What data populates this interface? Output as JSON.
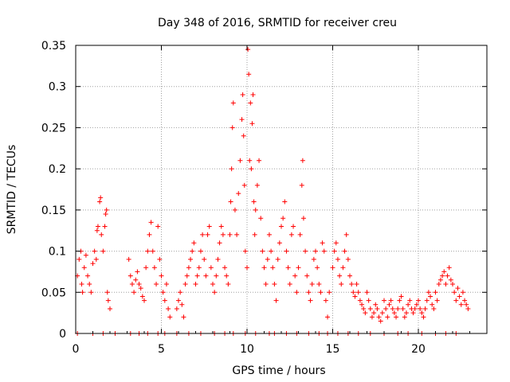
{
  "chart_data": {
    "type": "scatter",
    "title": "Day 348 of 2016, SRMTID for receiver creu",
    "xlabel": "GPS time / hours",
    "ylabel": "SRMTID / TECUs",
    "xlim": [
      0,
      24
    ],
    "ylim": [
      0,
      0.35
    ],
    "xticks": [
      0,
      5,
      10,
      15,
      20
    ],
    "xtick_labels": [
      "0",
      "5",
      "10",
      "15",
      "20"
    ],
    "yticks": [
      0,
      0.05,
      0.1,
      0.15,
      0.2,
      0.25,
      0.3,
      0.35
    ],
    "ytick_labels": [
      "0",
      "0.05",
      "0.1",
      "0.15",
      "0.2",
      "0.25",
      "0.3",
      "0.35"
    ],
    "grid": true,
    "marker": "+",
    "color": "#ff0000",
    "series": [
      {
        "name": "SRMTID",
        "points": [
          [
            0.1,
            0.07
          ],
          [
            0.2,
            0.09
          ],
          [
            0.3,
            0.1
          ],
          [
            0.35,
            0.06
          ],
          [
            0.4,
            0.05
          ],
          [
            0.5,
            0.08
          ],
          [
            0.6,
            0.095
          ],
          [
            0.7,
            0.07
          ],
          [
            0.8,
            0.06
          ],
          [
            0.9,
            0.05
          ],
          [
            1.0,
            0.085
          ],
          [
            1.1,
            0.1
          ],
          [
            1.2,
            0.09
          ],
          [
            1.25,
            0.125
          ],
          [
            1.3,
            0.13
          ],
          [
            1.4,
            0.16
          ],
          [
            1.45,
            0.165
          ],
          [
            1.5,
            0.12
          ],
          [
            1.6,
            0.1
          ],
          [
            1.7,
            0.13
          ],
          [
            1.75,
            0.145
          ],
          [
            1.8,
            0.15
          ],
          [
            1.85,
            0.05
          ],
          [
            1.9,
            0.04
          ],
          [
            2.0,
            0.03
          ],
          [
            3.1,
            0.09
          ],
          [
            3.2,
            0.07
          ],
          [
            3.3,
            0.06
          ],
          [
            3.4,
            0.05
          ],
          [
            3.5,
            0.065
          ],
          [
            3.6,
            0.075
          ],
          [
            3.7,
            0.06
          ],
          [
            3.8,
            0.055
          ],
          [
            3.9,
            0.045
          ],
          [
            4.0,
            0.04
          ],
          [
            4.1,
            0.08
          ],
          [
            4.2,
            0.1
          ],
          [
            4.3,
            0.12
          ],
          [
            4.4,
            0.135
          ],
          [
            4.5,
            0.1
          ],
          [
            4.6,
            0.08
          ],
          [
            4.7,
            0.06
          ],
          [
            4.8,
            0.13
          ],
          [
            4.9,
            0.09
          ],
          [
            5.0,
            0.07
          ],
          [
            5.1,
            0.05
          ],
          [
            5.2,
            0.04
          ],
          [
            5.3,
            0.06
          ],
          [
            5.4,
            0.03
          ],
          [
            5.5,
            0.02
          ],
          [
            5.9,
            0.03
          ],
          [
            6.0,
            0.04
          ],
          [
            6.1,
            0.05
          ],
          [
            6.2,
            0.035
          ],
          [
            6.3,
            0.02
          ],
          [
            6.4,
            0.06
          ],
          [
            6.5,
            0.07
          ],
          [
            6.6,
            0.08
          ],
          [
            6.7,
            0.09
          ],
          [
            6.8,
            0.1
          ],
          [
            6.9,
            0.11
          ],
          [
            7.0,
            0.06
          ],
          [
            7.1,
            0.07
          ],
          [
            7.2,
            0.08
          ],
          [
            7.3,
            0.1
          ],
          [
            7.4,
            0.12
          ],
          [
            7.5,
            0.09
          ],
          [
            7.6,
            0.07
          ],
          [
            7.7,
            0.12
          ],
          [
            7.8,
            0.13
          ],
          [
            7.9,
            0.08
          ],
          [
            8.0,
            0.06
          ],
          [
            8.1,
            0.05
          ],
          [
            8.2,
            0.07
          ],
          [
            8.3,
            0.09
          ],
          [
            8.4,
            0.11
          ],
          [
            8.5,
            0.13
          ],
          [
            8.6,
            0.12
          ],
          [
            8.7,
            0.08
          ],
          [
            8.8,
            0.07
          ],
          [
            8.9,
            0.06
          ],
          [
            9.0,
            0.12
          ],
          [
            9.05,
            0.16
          ],
          [
            9.1,
            0.2
          ],
          [
            9.15,
            0.25
          ],
          [
            9.2,
            0.28
          ],
          [
            9.3,
            0.15
          ],
          [
            9.4,
            0.12
          ],
          [
            9.5,
            0.17
          ],
          [
            9.6,
            0.21
          ],
          [
            9.7,
            0.26
          ],
          [
            9.75,
            0.29
          ],
          [
            9.8,
            0.24
          ],
          [
            9.85,
            0.18
          ],
          [
            9.9,
            0.1
          ],
          [
            10.0,
            0.08
          ],
          [
            10.05,
            0.345
          ],
          [
            10.1,
            0.315
          ],
          [
            10.15,
            0.21
          ],
          [
            10.2,
            0.28
          ],
          [
            10.25,
            0.2
          ],
          [
            10.3,
            0.255
          ],
          [
            10.35,
            0.29
          ],
          [
            10.4,
            0.16
          ],
          [
            10.45,
            0.12
          ],
          [
            10.5,
            0.15
          ],
          [
            10.6,
            0.18
          ],
          [
            10.7,
            0.21
          ],
          [
            10.8,
            0.14
          ],
          [
            10.9,
            0.1
          ],
          [
            11.0,
            0.08
          ],
          [
            11.1,
            0.06
          ],
          [
            11.2,
            0.09
          ],
          [
            11.3,
            0.12
          ],
          [
            11.4,
            0.1
          ],
          [
            11.5,
            0.08
          ],
          [
            11.6,
            0.06
          ],
          [
            11.7,
            0.04
          ],
          [
            11.8,
            0.09
          ],
          [
            11.9,
            0.11
          ],
          [
            12.0,
            0.13
          ],
          [
            12.1,
            0.14
          ],
          [
            12.2,
            0.16
          ],
          [
            12.3,
            0.1
          ],
          [
            12.4,
            0.08
          ],
          [
            12.5,
            0.06
          ],
          [
            12.6,
            0.12
          ],
          [
            12.7,
            0.13
          ],
          [
            12.8,
            0.07
          ],
          [
            12.9,
            0.05
          ],
          [
            13.0,
            0.08
          ],
          [
            13.1,
            0.12
          ],
          [
            13.2,
            0.18
          ],
          [
            13.25,
            0.21
          ],
          [
            13.3,
            0.14
          ],
          [
            13.4,
            0.1
          ],
          [
            13.5,
            0.07
          ],
          [
            13.6,
            0.05
          ],
          [
            13.7,
            0.04
          ],
          [
            13.8,
            0.06
          ],
          [
            13.9,
            0.09
          ],
          [
            14.0,
            0.1
          ],
          [
            14.1,
            0.08
          ],
          [
            14.2,
            0.06
          ],
          [
            14.3,
            0.05
          ],
          [
            14.4,
            0.11
          ],
          [
            14.5,
            0.1
          ],
          [
            14.6,
            0.04
          ],
          [
            14.7,
            0.02
          ],
          [
            14.8,
            0.05
          ],
          [
            15.0,
            0.08
          ],
          [
            15.1,
            0.1
          ],
          [
            15.2,
            0.11
          ],
          [
            15.3,
            0.09
          ],
          [
            15.4,
            0.07
          ],
          [
            15.5,
            0.06
          ],
          [
            15.6,
            0.08
          ],
          [
            15.7,
            0.1
          ],
          [
            15.8,
            0.12
          ],
          [
            15.9,
            0.09
          ],
          [
            16.0,
            0.07
          ],
          [
            16.1,
            0.06
          ],
          [
            16.2,
            0.05
          ],
          [
            16.3,
            0.045
          ],
          [
            16.4,
            0.06
          ],
          [
            16.5,
            0.05
          ],
          [
            16.6,
            0.04
          ],
          [
            16.7,
            0.035
          ],
          [
            16.8,
            0.03
          ],
          [
            16.9,
            0.025
          ],
          [
            17.0,
            0.05
          ],
          [
            17.1,
            0.04
          ],
          [
            17.2,
            0.03
          ],
          [
            17.3,
            0.02
          ],
          [
            17.4,
            0.025
          ],
          [
            17.5,
            0.035
          ],
          [
            17.6,
            0.03
          ],
          [
            17.7,
            0.02
          ],
          [
            17.8,
            0.015
          ],
          [
            17.9,
            0.025
          ],
          [
            18.0,
            0.04
          ],
          [
            18.1,
            0.03
          ],
          [
            18.2,
            0.02
          ],
          [
            18.3,
            0.035
          ],
          [
            18.4,
            0.04
          ],
          [
            18.5,
            0.03
          ],
          [
            18.6,
            0.025
          ],
          [
            18.7,
            0.02
          ],
          [
            18.8,
            0.03
          ],
          [
            18.9,
            0.04
          ],
          [
            19.0,
            0.045
          ],
          [
            19.1,
            0.03
          ],
          [
            19.2,
            0.02
          ],
          [
            19.3,
            0.025
          ],
          [
            19.4,
            0.035
          ],
          [
            19.5,
            0.04
          ],
          [
            19.6,
            0.03
          ],
          [
            19.7,
            0.025
          ],
          [
            19.8,
            0.03
          ],
          [
            19.9,
            0.035
          ],
          [
            20.0,
            0.04
          ],
          [
            20.1,
            0.03
          ],
          [
            20.2,
            0.025
          ],
          [
            20.3,
            0.02
          ],
          [
            20.4,
            0.03
          ],
          [
            20.5,
            0.04
          ],
          [
            20.6,
            0.05
          ],
          [
            20.7,
            0.045
          ],
          [
            20.8,
            0.035
          ],
          [
            20.9,
            0.03
          ],
          [
            21.0,
            0.05
          ],
          [
            21.1,
            0.04
          ],
          [
            21.2,
            0.06
          ],
          [
            21.3,
            0.065
          ],
          [
            21.4,
            0.07
          ],
          [
            21.5,
            0.075
          ],
          [
            21.6,
            0.06
          ],
          [
            21.7,
            0.07
          ],
          [
            21.8,
            0.08
          ],
          [
            21.9,
            0.065
          ],
          [
            22.0,
            0.06
          ],
          [
            22.1,
            0.05
          ],
          [
            22.2,
            0.04
          ],
          [
            22.3,
            0.055
          ],
          [
            22.4,
            0.045
          ],
          [
            22.5,
            0.035
          ],
          [
            22.6,
            0.05
          ],
          [
            22.7,
            0.04
          ],
          [
            22.8,
            0.035
          ],
          [
            22.9,
            0.03
          ],
          [
            0.1,
            0
          ],
          [
            1.0,
            0
          ],
          [
            1.6,
            0
          ],
          [
            2.3,
            0
          ],
          [
            3.2,
            0
          ],
          [
            3.7,
            0
          ],
          [
            4.2,
            0
          ],
          [
            4.8,
            0
          ],
          [
            5.2,
            0
          ],
          [
            5.9,
            0
          ],
          [
            6.6,
            0
          ],
          [
            7.3,
            0
          ],
          [
            8.1,
            0
          ],
          [
            8.7,
            0
          ],
          [
            9.2,
            0
          ],
          [
            9.9,
            0
          ],
          [
            10.5,
            0
          ],
          [
            11.3,
            0
          ],
          [
            11.6,
            0
          ],
          [
            12.3,
            0
          ],
          [
            12.9,
            0
          ],
          [
            13.6,
            0
          ],
          [
            14.2,
            0
          ],
          [
            14.7,
            0
          ],
          [
            15.3,
            0
          ],
          [
            15.9,
            0
          ],
          [
            16.5,
            0
          ],
          [
            17.2,
            0
          ],
          [
            18.0,
            0
          ],
          [
            18.8,
            0
          ],
          [
            19.4,
            0
          ],
          [
            20.2,
            0
          ],
          [
            21.0,
            0
          ],
          [
            21.6,
            0
          ],
          [
            22.2,
            0
          ]
        ]
      }
    ]
  }
}
